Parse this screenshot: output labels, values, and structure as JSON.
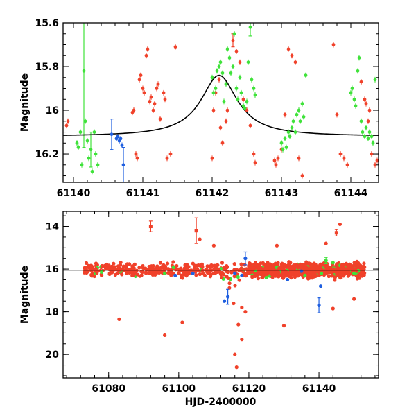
{
  "colors": {
    "red": "#f0412a",
    "green": "#3fe23a",
    "blue": "#1f5fe0",
    "model": "#000000"
  },
  "chart_data": [
    {
      "type": "scatter",
      "panel": "top",
      "title": "",
      "xlabel": "",
      "ylabel": "Magnitude",
      "xlim": [
        61139.85,
        61144.4
      ],
      "ylim": [
        16.33,
        15.6
      ],
      "y_inverted": true,
      "x_ticks": [
        "61140",
        "61141",
        "61142",
        "61143",
        "61144"
      ],
      "x_tick_values": [
        61140,
        61141,
        61142,
        61143,
        61144
      ],
      "y_ticks": [
        "15.6",
        "15.8",
        "16",
        "16.2"
      ],
      "y_tick_values": [
        15.6,
        15.8,
        16.0,
        16.2
      ],
      "model_curve": {
        "name": "model",
        "baseline": 16.12,
        "peak_mag": 15.84,
        "t0": 61142.1,
        "width": 0.32
      },
      "series": [
        {
          "name": "red",
          "color_key": "red",
          "points": [
            [
              61139.9,
              16.07
            ],
            [
              61139.92,
              16.05
            ],
            [
              61140.85,
              16.01
            ],
            [
              61140.87,
              16.0
            ],
            [
              61140.9,
              16.2
            ],
            [
              61140.92,
              16.22
            ],
            [
              61140.95,
              15.86
            ],
            [
              61140.97,
              15.84
            ],
            [
              61141.0,
              15.9
            ],
            [
              61141.02,
              15.92
            ],
            [
              61141.05,
              15.75
            ],
            [
              61141.07,
              15.72
            ],
            [
              61141.1,
              15.96
            ],
            [
              61141.12,
              15.94
            ],
            [
              61141.15,
              16.0
            ],
            [
              61141.17,
              15.97
            ],
            [
              61141.2,
              15.9
            ],
            [
              61141.22,
              15.88
            ],
            [
              61141.25,
              16.04
            ],
            [
              61141.3,
              15.92
            ],
            [
              61141.32,
              15.95
            ],
            [
              61141.35,
              16.22
            ],
            [
              61141.4,
              16.2
            ],
            [
              61141.47,
              15.71
            ],
            [
              61142.0,
              16.22
            ],
            [
              61142.02,
              16.0
            ],
            [
              61142.05,
              15.92
            ],
            [
              61142.1,
              15.86
            ],
            [
              61142.12,
              16.08
            ],
            [
              61142.15,
              16.15
            ],
            [
              61142.2,
              16.05
            ],
            [
              61142.22,
              16.0
            ],
            [
              61142.3,
              15.68
            ],
            [
              61142.35,
              15.73
            ],
            [
              61142.4,
              15.78
            ],
            [
              61142.45,
              15.95
            ],
            [
              61142.5,
              16.0
            ],
            [
              61142.55,
              16.07
            ],
            [
              61142.6,
              16.2
            ],
            [
              61142.62,
              16.24
            ],
            [
              61142.9,
              16.23
            ],
            [
              61142.92,
              16.25
            ],
            [
              61142.95,
              16.22
            ],
            [
              61143.0,
              16.18
            ],
            [
              61143.05,
              16.02
            ],
            [
              61143.1,
              15.72
            ],
            [
              61143.15,
              15.75
            ],
            [
              61143.2,
              15.78
            ],
            [
              61143.25,
              16.22
            ],
            [
              61143.3,
              16.3
            ],
            [
              61144.15,
              15.87
            ],
            [
              61144.2,
              15.95
            ],
            [
              61144.22,
              15.97
            ],
            [
              61144.25,
              16.05
            ],
            [
              61144.27,
              16.0
            ],
            [
              61144.3,
              16.2
            ],
            [
              61144.35,
              16.25
            ],
            [
              61144.38,
              16.23
            ],
            [
              61143.75,
              15.7
            ],
            [
              61143.8,
              16.02
            ],
            [
              61143.85,
              16.2
            ],
            [
              61143.9,
              16.22
            ],
            [
              61143.95,
              16.25
            ]
          ]
        },
        {
          "name": "green",
          "color_key": "green",
          "points": [
            [
              61140.05,
              16.15
            ],
            [
              61140.07,
              16.17
            ],
            [
              61140.1,
              16.1
            ],
            [
              61140.12,
              16.25
            ],
            [
              61140.15,
              15.82
            ],
            [
              61140.17,
              16.05
            ],
            [
              61140.2,
              16.14
            ],
            [
              61140.22,
              16.22
            ],
            [
              61140.25,
              16.18
            ],
            [
              61140.27,
              16.28
            ],
            [
              61140.3,
              16.1
            ],
            [
              61140.32,
              16.2
            ],
            [
              61140.35,
              16.25
            ],
            [
              61142.0,
              15.85
            ],
            [
              61142.02,
              15.92
            ],
            [
              61142.05,
              15.9
            ],
            [
              61142.07,
              15.82
            ],
            [
              61142.1,
              15.8
            ],
            [
              61142.12,
              15.78
            ],
            [
              61142.15,
              15.83
            ],
            [
              61142.17,
              15.96
            ],
            [
              61142.2,
              15.88
            ],
            [
              61142.22,
              15.72
            ],
            [
              61142.25,
              15.76
            ],
            [
              61142.27,
              15.83
            ],
            [
              61142.3,
              15.8
            ],
            [
              61142.32,
              15.65
            ],
            [
              61142.35,
              15.9
            ],
            [
              61142.37,
              15.95
            ],
            [
              61142.4,
              15.85
            ],
            [
              61142.42,
              15.92
            ],
            [
              61142.45,
              15.98
            ],
            [
              61142.47,
              15.99
            ],
            [
              61142.5,
              15.96
            ],
            [
              61142.52,
              15.78
            ],
            [
              61142.55,
              15.62
            ],
            [
              61142.57,
              15.86
            ],
            [
              61142.6,
              15.9
            ],
            [
              61142.62,
              15.93
            ],
            [
              61143.0,
              16.15
            ],
            [
              61143.02,
              16.18
            ],
            [
              61143.05,
              16.13
            ],
            [
              61143.07,
              16.17
            ],
            [
              61143.1,
              16.1
            ],
            [
              61143.12,
              16.12
            ],
            [
              61143.15,
              16.08
            ],
            [
              61143.17,
              16.05
            ],
            [
              61143.2,
              16.1
            ],
            [
              61143.22,
              16.02
            ],
            [
              61143.25,
              16.0
            ],
            [
              61143.27,
              16.05
            ],
            [
              61143.3,
              15.97
            ],
            [
              61143.32,
              16.03
            ],
            [
              61143.35,
              15.84
            ],
            [
              61144.0,
              15.92
            ],
            [
              61144.02,
              15.9
            ],
            [
              61144.05,
              15.95
            ],
            [
              61144.07,
              15.98
            ],
            [
              61144.1,
              15.82
            ],
            [
              61144.12,
              15.76
            ],
            [
              61144.15,
              16.05
            ],
            [
              61144.17,
              16.1
            ],
            [
              61144.2,
              16.12
            ],
            [
              61144.22,
              16.08
            ],
            [
              61144.25,
              16.13
            ],
            [
              61144.27,
              16.1
            ],
            [
              61144.3,
              16.12
            ],
            [
              61144.32,
              16.15
            ],
            [
              61144.35,
              15.86
            ]
          ]
        },
        {
          "name": "blue",
          "color_key": "blue",
          "points": [
            [
              61140.55,
              16.11
            ],
            [
              61140.62,
              16.13
            ],
            [
              61140.64,
              16.12
            ],
            [
              61140.66,
              16.14
            ],
            [
              61140.68,
              16.13
            ],
            [
              61140.7,
              16.16
            ],
            [
              61140.72,
              16.25
            ]
          ]
        }
      ],
      "errorbars": [
        {
          "series": "green",
          "x": 61140.15,
          "y": 15.82,
          "err": 0.35
        },
        {
          "series": "green",
          "x": 61140.25,
          "y": 16.18,
          "err": 0.08
        },
        {
          "series": "blue",
          "x": 61140.55,
          "y": 16.11,
          "err": 0.07
        },
        {
          "series": "blue",
          "x": 61140.72,
          "y": 16.25,
          "err": 0.08
        },
        {
          "series": "red",
          "x": 61142.3,
          "y": 15.68,
          "err": 0.03
        },
        {
          "series": "green",
          "x": 61142.55,
          "y": 15.62,
          "err": 0.04
        }
      ]
    },
    {
      "type": "scatter",
      "panel": "bottom",
      "title": "",
      "xlabel": "HJD-2400000",
      "ylabel": "Magnitude",
      "xlim": [
        61067,
        61157
      ],
      "ylim": [
        21.1,
        13.3
      ],
      "y_inverted": true,
      "x_ticks": [
        "61080",
        "61100",
        "61120",
        "61140"
      ],
      "x_tick_values": [
        61080,
        61100,
        61120,
        61140
      ],
      "y_ticks": [
        "14",
        "16",
        "18",
        "20"
      ],
      "y_tick_values": [
        14,
        16,
        18,
        20
      ],
      "model_level": 16.05,
      "series": [
        {
          "name": "red",
          "color_key": "red"
        },
        {
          "name": "green",
          "color_key": "green"
        },
        {
          "name": "blue",
          "color_key": "blue"
        }
      ],
      "outliers": [
        {
          "series": "red",
          "x": 61092,
          "y": 14.0
        },
        {
          "series": "red",
          "x": 61105,
          "y": 14.2
        },
        {
          "series": "red",
          "x": 61106,
          "y": 14.6
        },
        {
          "series": "red",
          "x": 61083,
          "y": 18.35
        },
        {
          "series": "red",
          "x": 61096,
          "y": 19.1
        },
        {
          "series": "red",
          "x": 61101,
          "y": 18.5
        },
        {
          "series": "red",
          "x": 61116,
          "y": 20.0
        },
        {
          "series": "red",
          "x": 61116.5,
          "y": 20.6
        },
        {
          "series": "red",
          "x": 61118,
          "y": 19.3
        },
        {
          "series": "red",
          "x": 61130,
          "y": 18.65
        },
        {
          "series": "red",
          "x": 61145,
          "y": 14.3
        },
        {
          "series": "red",
          "x": 61146,
          "y": 13.9
        },
        {
          "series": "red",
          "x": 61142,
          "y": 14.8
        },
        {
          "series": "red",
          "x": 61110,
          "y": 14.9
        },
        {
          "series": "red",
          "x": 61128,
          "y": 14.9
        },
        {
          "series": "red",
          "x": 61118,
          "y": 17.8
        },
        {
          "series": "red",
          "x": 61119,
          "y": 18.0
        },
        {
          "series": "red",
          "x": 61117,
          "y": 18.6
        },
        {
          "series": "red",
          "x": 61144,
          "y": 17.85
        },
        {
          "series": "red",
          "x": 61150,
          "y": 17.4
        },
        {
          "series": "blue",
          "x": 61113,
          "y": 17.5
        },
        {
          "series": "blue",
          "x": 61114,
          "y": 17.3
        },
        {
          "series": "blue",
          "x": 61119,
          "y": 15.5
        },
        {
          "series": "blue",
          "x": 61140,
          "y": 17.7
        },
        {
          "series": "blue",
          "x": 61140.5,
          "y": 16.8
        },
        {
          "series": "blue",
          "x": 61131,
          "y": 16.5
        },
        {
          "series": "blue",
          "x": 61116,
          "y": 16.2
        },
        {
          "series": "blue",
          "x": 61118,
          "y": 16.3
        },
        {
          "series": "blue",
          "x": 61104,
          "y": 16.2
        },
        {
          "series": "blue",
          "x": 61099,
          "y": 16.3
        },
        {
          "series": "blue",
          "x": 61135,
          "y": 16.1
        },
        {
          "series": "green",
          "x": 61142,
          "y": 15.6
        },
        {
          "series": "green",
          "x": 61144,
          "y": 15.7
        },
        {
          "series": "green",
          "x": 61096,
          "y": 16.2
        },
        {
          "series": "green",
          "x": 61125,
          "y": 16.4
        },
        {
          "series": "green",
          "x": 61136,
          "y": 16.3
        },
        {
          "series": "green",
          "x": 61150,
          "y": 16.2
        }
      ],
      "errorbars": [
        {
          "series": "red",
          "x": 61092,
          "y": 14.0,
          "err": 0.25
        },
        {
          "series": "red",
          "x": 61105,
          "y": 14.2,
          "err": 0.6
        },
        {
          "series": "blue",
          "x": 61114,
          "y": 17.3,
          "err": 0.35
        },
        {
          "series": "blue",
          "x": 61119,
          "y": 15.5,
          "err": 0.3
        },
        {
          "series": "blue",
          "x": 61140,
          "y": 17.7,
          "err": 0.35
        },
        {
          "series": "red",
          "x": 61145,
          "y": 14.3,
          "err": 0.15
        },
        {
          "series": "green",
          "x": 61142,
          "y": 15.6,
          "err": 0.15
        }
      ],
      "cloud": {
        "x_start": 61073,
        "x_end": 61153,
        "center": 16.05,
        "spread": 0.22,
        "dip_x": 61116,
        "dip_depth": 1.5
      }
    }
  ]
}
